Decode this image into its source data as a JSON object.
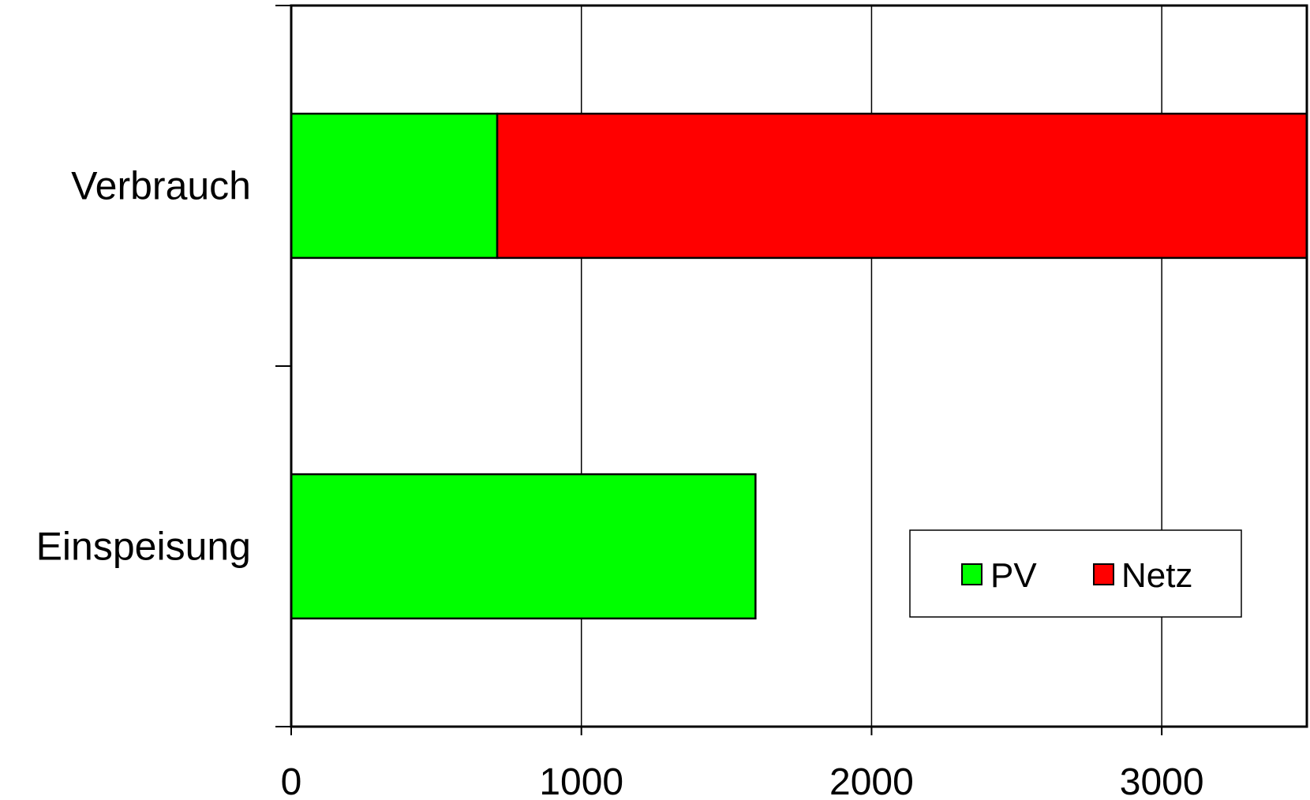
{
  "chart_data": {
    "type": "bar",
    "orientation": "horizontal",
    "stacked": true,
    "categories": [
      "Verbrauch",
      "Einspeisung"
    ],
    "series": [
      {
        "name": "PV",
        "color": "#00ff00",
        "values": [
          710,
          1600
        ]
      },
      {
        "name": "Netz",
        "color": "#ff0000",
        "values": [
          2790,
          0
        ]
      }
    ],
    "xlim": [
      0,
      3500
    ],
    "xticks": [
      0,
      1000,
      2000,
      3000
    ],
    "tick_labels": [
      "0",
      "1000",
      "2000",
      "3000"
    ],
    "grid": true,
    "legend_position": "bottom-right"
  }
}
